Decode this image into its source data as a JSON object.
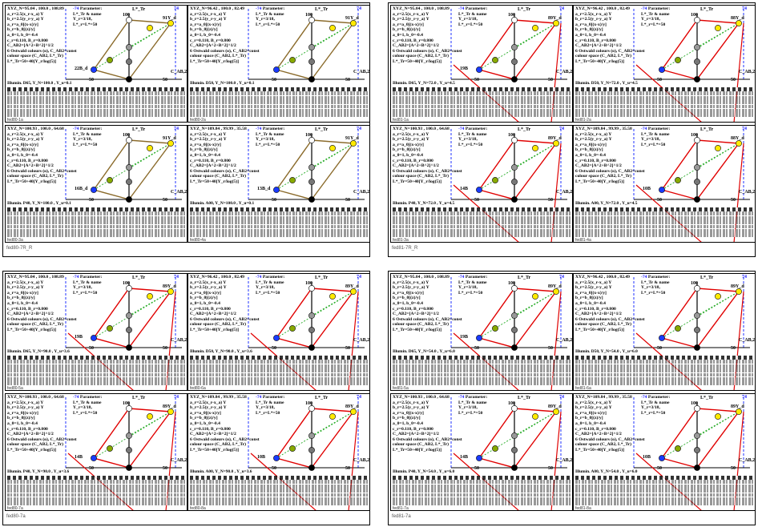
{
  "pages": [
    {
      "footer": "fed80-1a",
      "footer2": "fed80-7R_R",
      "panels": [
        {
          "xyz": "XYZ_N=95.04 , 100.0 , 108.89",
          "illum": "Illumin. D65, Y_N=100.0 , Y_u=0.1",
          "top": "91Y_d",
          "left": "22B_d",
          "mark": "-74",
          "right": "74",
          "foot": "fed80-1a",
          "mode": "inverse"
        },
        {
          "xyz": "XYZ_N=96.42 , 100.0 , 82.49",
          "illum": "Illumin. D50, Y_N=100.0 , Y_u=0.1",
          "top": "91Y_d",
          "left": "",
          "mark": "-74",
          "right": "74",
          "foot": "fed80-2a",
          "mode": "inverse"
        },
        {
          "xyz": "XYZ_N=100.93 , 100.0 , 64.68",
          "illum": "Illumin. P40, Y_N=100.0 , Y_u=0.1",
          "top": "91Y_d",
          "left": "16B_d",
          "mark": "-74",
          "right": "74",
          "foot": "fed80-3a",
          "mode": "inverse"
        },
        {
          "xyz": "XYZ_N=109.84 , 99.99 , 35.58",
          "illum": "Illumin. A00, Y_N=100.0 , Y_u=0.1",
          "top": "91Y_d",
          "left": "13B_d",
          "mark": "-74",
          "right": "74",
          "foot": "fed80-4a",
          "mode": "inverse"
        }
      ]
    },
    {
      "footer": "fed81-1a",
      "footer2": "fed81-7R_R",
      "panels": [
        {
          "xyz": "XYZ_N=95.04 , 100.0 , 108.89",
          "illum": "Illumin. D65, Y_N=72.0 , Y_u=4.5",
          "top": "89Y_d",
          "left": "19B",
          "mark": "-74",
          "right": "74",
          "foot": "fed81-1a",
          "mode": "normal"
        },
        {
          "xyz": "XYZ_N=96.42 , 100.0 , 82.49",
          "illum": "Illumin. D50, Y_N=72.0 , Y_u=4.5",
          "top": "88Y_d",
          "left": "",
          "mark": "-74",
          "right": "74",
          "foot": "fed81-2a",
          "mode": "normal"
        },
        {
          "xyz": "XYZ_N=100.93 , 100.0 , 64.68",
          "illum": "Illumin. P40, Y_N=72.0 , Y_u=4.5",
          "top": "89Y_d",
          "left": "14B",
          "mark": "-74",
          "right": "74",
          "foot": "fed81-3a",
          "mode": "normal"
        },
        {
          "xyz": "XYZ_N=109.84 , 99.99 , 35.58",
          "illum": "Illumin. A00, Y_N=72.0 , Y_u=4.5",
          "top": "88Y_d",
          "left": "10B",
          "mark": "-74",
          "right": "74",
          "foot": "fed81-4a",
          "mode": "normal"
        }
      ]
    },
    {
      "footer": "fed80-5a",
      "footer2": "fed80-7a",
      "panels": [
        {
          "xyz": "XYZ_N=95.04 , 100.0 , 108.89",
          "illum": "Illumin. D65, Y_N=90.0 , Y_u=3.6",
          "top": "89Y_d",
          "left": "19B",
          "mark": "-74",
          "right": "74",
          "foot": "fed80-5a",
          "mode": "normal"
        },
        {
          "xyz": "XYZ_N=96.42 , 100.0 , 82.49",
          "illum": "Illumin. D50, Y_N=90.0 , Y_u=3.6",
          "top": "89Y_d",
          "left": "",
          "mark": "-74",
          "right": "74",
          "foot": "fed80-6a",
          "mode": "normal"
        },
        {
          "xyz": "XYZ_N=100.93 , 100.0 , 64.68",
          "illum": "Illumin. P40, Y_N=90.0 , Y_u=3.6",
          "top": "89Y_d",
          "left": "14B",
          "mark": "-74",
          "right": "74",
          "foot": "fed80-7a",
          "mode": "normal"
        },
        {
          "xyz": "XYZ_N=109.84 , 99.99 , 35.58",
          "illum": "Illumin. A00, Y_N=90.0 , Y_u=3.6",
          "top": "89Y_d",
          "left": "10B",
          "mark": "-74",
          "right": "74",
          "foot": "fed80-8a",
          "mode": "normal"
        }
      ]
    },
    {
      "footer": "fed81-5a",
      "footer2": "fed81-7a",
      "panels": [
        {
          "xyz": "XYZ_N=95.04 , 100.0 , 108.89",
          "illum": "Illumin. D65, Y_N=54.0 , Y_u=6.0",
          "top": "89Y_d",
          "left": "19B",
          "mark": "-74",
          "right": "74",
          "foot": "fed81-5a",
          "mode": "normal"
        },
        {
          "xyz": "XYZ_N=96.42 , 100.0 , 82.49",
          "illum": "Illumin. D50, Y_N=54.0 , Y_u=6.0",
          "top": "89Y_d",
          "left": "",
          "mark": "-74",
          "right": "74",
          "foot": "fed81-6a",
          "mode": "normal"
        },
        {
          "xyz": "XYZ_N=100.93 , 100.0 , 64.68",
          "illum": "Illumin. P40, Y_N=54.0 , Y_u=6.0",
          "top": "89Y_d",
          "left": "14B",
          "mark": "-74",
          "right": "74",
          "foot": "fed81-7a",
          "mode": "normal"
        },
        {
          "xyz": "XYZ_N=109.84 , 99.99 , 35.58",
          "illum": "Illumin. A00, Y_N=54.0 , Y_u=6.0",
          "top": "89Y_d",
          "left": "10B",
          "mark": "-74",
          "right": "74",
          "foot": "fed81-8a",
          "mode": "normal"
        }
      ]
    }
  ],
  "param_lines": [
    "Parameter:",
    "L*_Tr & name",
    "Y_r=3/18,",
    "L*_r=L*=50"
  ],
  "formula_lines": [
    "a_r=2.5(x_r-x_a) Y",
    "b_r=2.5(y_r-y_a) Y",
    "a_r=a_0[(x-x)/y]",
    "b_r=b_0[(z)/y]",
    "a_0=1, b_0=-0.4",
    "c_r=0.110, B_r=0.800",
    "C_AB2=[A^2+B^2]^1/2",
    "6 Ostwald colours (o), C_AB2=const",
    "colour space (C_AB2, L*_Tr)",
    "L*_Tr=50+40[Y_r/log(5)]"
  ],
  "axis_labels": {
    "top_axis": "L*_Tr",
    "top_value": "100",
    "mid_value": "50",
    "bottom_value": "0",
    "right_axis": "C_AB,2",
    "scale_neg": "-50",
    "scale_zero": "0",
    "scale_pos": "50"
  }
}
